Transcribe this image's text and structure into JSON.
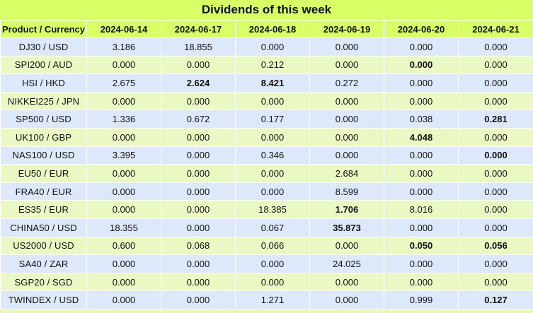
{
  "title": "Dividends of this week",
  "table": {
    "corner_header": "Product / Currency",
    "dates": [
      "2024-06-14",
      "2024-06-17",
      "2024-06-18",
      "2024-06-19",
      "2024-06-20",
      "2024-06-21"
    ],
    "rows": [
      {
        "symbol": "DJ30 / USD",
        "values": [
          "3.186",
          "18.855",
          "0.000",
          "0.000",
          "0.000",
          "0.000"
        ],
        "bold": [
          false,
          false,
          false,
          false,
          false,
          false
        ]
      },
      {
        "symbol": "SPI200 / AUD",
        "values": [
          "0.000",
          "0.000",
          "0.212",
          "0.000",
          "0.000",
          "0.000"
        ],
        "bold": [
          false,
          false,
          false,
          false,
          true,
          false
        ]
      },
      {
        "symbol": "HSI / HKD",
        "values": [
          "2.675",
          "2.624",
          "8.421",
          "0.272",
          "0.000",
          "0.000"
        ],
        "bold": [
          false,
          true,
          true,
          false,
          false,
          false
        ]
      },
      {
        "symbol": "NIKKEI225 / JPN",
        "values": [
          "0.000",
          "0.000",
          "0.000",
          "0.000",
          "0.000",
          "0.000"
        ],
        "bold": [
          false,
          false,
          false,
          false,
          false,
          false
        ]
      },
      {
        "symbol": "SP500 / USD",
        "values": [
          "1.336",
          "0.672",
          "0.177",
          "0.000",
          "0.038",
          "0.281"
        ],
        "bold": [
          false,
          false,
          false,
          false,
          false,
          true
        ]
      },
      {
        "symbol": "UK100 / GBP",
        "values": [
          "0.000",
          "0.000",
          "0.000",
          "0.000",
          "4.048",
          "0.000"
        ],
        "bold": [
          false,
          false,
          false,
          false,
          true,
          false
        ]
      },
      {
        "symbol": "NAS100 / USD",
        "values": [
          "3.395",
          "0.000",
          "0.346",
          "0.000",
          "0.000",
          "0.000"
        ],
        "bold": [
          false,
          false,
          false,
          false,
          false,
          true
        ]
      },
      {
        "symbol": "EU50 / EUR",
        "values": [
          "0.000",
          "0.000",
          "0.000",
          "2.684",
          "0.000",
          "0.000"
        ],
        "bold": [
          false,
          false,
          false,
          false,
          false,
          false
        ]
      },
      {
        "symbol": "FRA40 / EUR",
        "values": [
          "0.000",
          "0.000",
          "0.000",
          "8.599",
          "0.000",
          "0.000"
        ],
        "bold": [
          false,
          false,
          false,
          false,
          false,
          false
        ]
      },
      {
        "symbol": "ES35 / EUR",
        "values": [
          "0.000",
          "0.000",
          "18.385",
          "1.706",
          "8.016",
          "0.000"
        ],
        "bold": [
          false,
          false,
          false,
          true,
          false,
          false
        ]
      },
      {
        "symbol": "CHINA50 / USD",
        "values": [
          "18.355",
          "0.000",
          "0.067",
          "35.873",
          "0.000",
          "0.000"
        ],
        "bold": [
          false,
          false,
          false,
          true,
          false,
          false
        ]
      },
      {
        "symbol": "US2000 / USD",
        "values": [
          "0.600",
          "0.068",
          "0.066",
          "0.000",
          "0.050",
          "0.056"
        ],
        "bold": [
          false,
          false,
          false,
          false,
          true,
          true
        ]
      },
      {
        "symbol": "SA40 / ZAR",
        "values": [
          "0.000",
          "0.000",
          "0.000",
          "24.025",
          "0.000",
          "0.000"
        ],
        "bold": [
          false,
          false,
          false,
          false,
          false,
          false
        ]
      },
      {
        "symbol": "SGP20 / SGD",
        "values": [
          "0.000",
          "0.000",
          "0.000",
          "0.000",
          "0.000",
          "0.000"
        ],
        "bold": [
          false,
          false,
          false,
          false,
          false,
          false
        ]
      },
      {
        "symbol": "TWINDEX / USD",
        "values": [
          "0.000",
          "0.000",
          "1.271",
          "0.000",
          "0.999",
          "0.127"
        ],
        "bold": [
          false,
          false,
          false,
          false,
          false,
          true
        ]
      }
    ]
  },
  "colors": {
    "header_bg": "#d8ff66",
    "row_green": "#eaf8c4",
    "row_blue": "#dde9fb"
  }
}
